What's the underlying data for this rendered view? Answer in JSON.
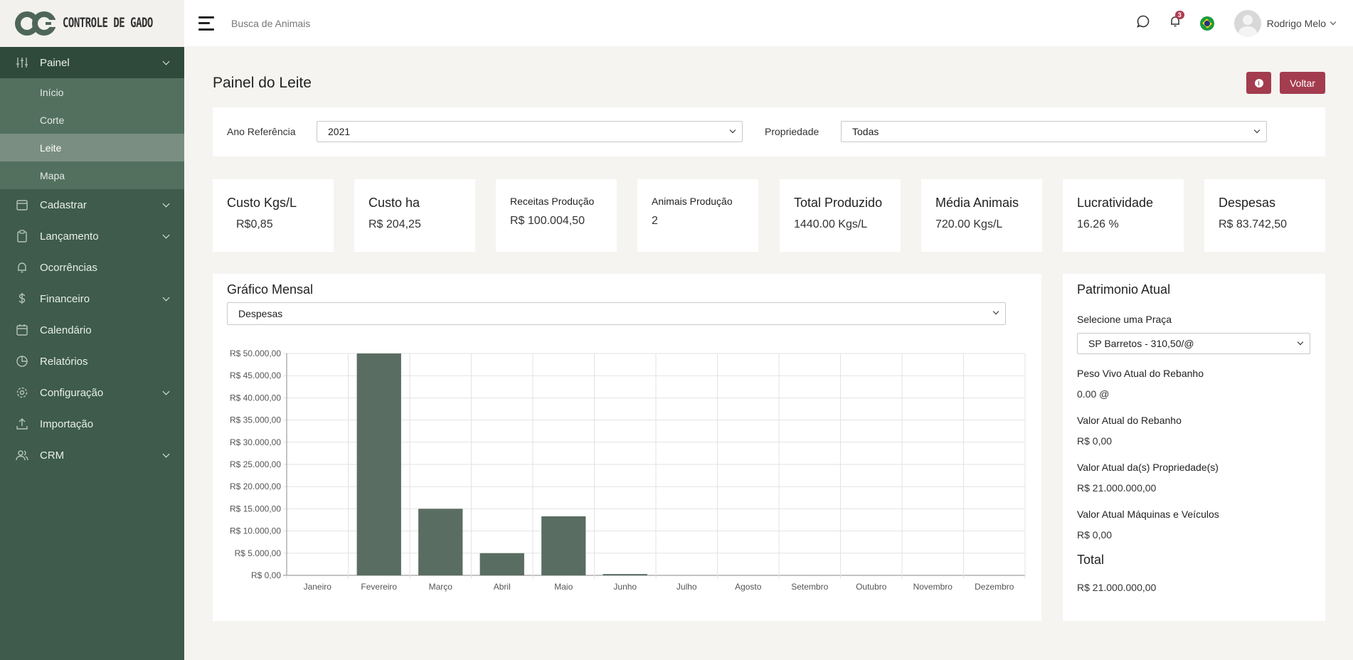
{
  "app": {
    "logo_text": "CONTROLE DE GADO"
  },
  "sidebar": {
    "items": [
      {
        "label": "Painel",
        "icon": "sliders-icon",
        "expanded": true,
        "children": [
          {
            "label": "Início"
          },
          {
            "label": "Corte"
          },
          {
            "label": "Leite",
            "active": true
          },
          {
            "label": "Mapa"
          }
        ]
      },
      {
        "label": "Cadastrar",
        "icon": "calendar-icon"
      },
      {
        "label": "Lançamento",
        "icon": "clipboard-icon"
      },
      {
        "label": "Ocorrências",
        "icon": "bell-icon"
      },
      {
        "label": "Financeiro",
        "icon": "dollar-icon"
      },
      {
        "label": "Calendário",
        "icon": "calendar-icon"
      },
      {
        "label": "Relatórios",
        "icon": "pie-chart-icon"
      },
      {
        "label": "Configuração",
        "icon": "gear-icon"
      },
      {
        "label": "Importação",
        "icon": "upload-icon"
      },
      {
        "label": "CRM",
        "icon": "users-icon"
      }
    ]
  },
  "topbar": {
    "search_label": "Busca de Animais",
    "notification_count": "3",
    "user_name": "Rodrigo Melo"
  },
  "page": {
    "title": "Painel do Leite",
    "back_label": "Voltar"
  },
  "filters": {
    "year_label": "Ano Referência",
    "year_value": "2021",
    "property_label": "Propriedade",
    "property_value": "Todas"
  },
  "stats": [
    {
      "label": "Custo Kgs/L",
      "value": "R$0,85"
    },
    {
      "label": "Custo ha",
      "value": "R$ 204,25"
    },
    {
      "label": "Receitas Produção",
      "value": "R$ 100.004,50"
    },
    {
      "label": "Animais Produção",
      "value": "2"
    },
    {
      "label": "Total Produzido",
      "value": "1440.00 Kgs/L"
    },
    {
      "label": "Média Animais",
      "value": "720.00 Kgs/L"
    },
    {
      "label": "Lucratividade",
      "value": "16.26 %"
    },
    {
      "label": "Despesas",
      "value": "R$ 83.742,50"
    }
  ],
  "monthly": {
    "title": "Gráfico Mensal",
    "select_value": "Despesas"
  },
  "patrimonio": {
    "title": "Patrimonio Atual",
    "praca_label": "Selecione uma Praça",
    "praca_value": "SP Barretos - 310,50/@",
    "peso_label": "Peso Vivo Atual do Rebanho",
    "peso_value": "0.00 @",
    "rebanho_label": "Valor Atual do Rebanho",
    "rebanho_value": "R$ 0,00",
    "propriedade_label": "Valor Atual da(s) Propriedade(s)",
    "propriedade_value": "R$ 21.000.000,00",
    "maquinas_label": "Valor Atual Máquinas e Veículos",
    "maquinas_value": "R$ 0,00",
    "total_label": "Total",
    "total_value": "R$ 21.000.000,00"
  },
  "chart_data": {
    "type": "bar",
    "categories": [
      "Janeiro",
      "Fevereiro",
      "Março",
      "Abril",
      "Maio",
      "Junho",
      "Julho",
      "Agosto",
      "Setembro",
      "Outubro",
      "Novembro",
      "Dezembro"
    ],
    "values": [
      0,
      50000,
      15000,
      5000,
      13300,
      300,
      0,
      0,
      0,
      0,
      0,
      0
    ],
    "ylim": [
      0,
      50000
    ],
    "yticks": [
      "R$ 0,00",
      "R$ 5.000,00",
      "R$ 10.000,00",
      "R$ 15.000,00",
      "R$ 20.000,00",
      "R$ 25.000,00",
      "R$ 30.000,00",
      "R$ 35.000,00",
      "R$ 40.000,00",
      "R$ 45.000,00",
      "R$ 50.000,00"
    ],
    "grid": true,
    "bar_color": "#5a6d62"
  }
}
